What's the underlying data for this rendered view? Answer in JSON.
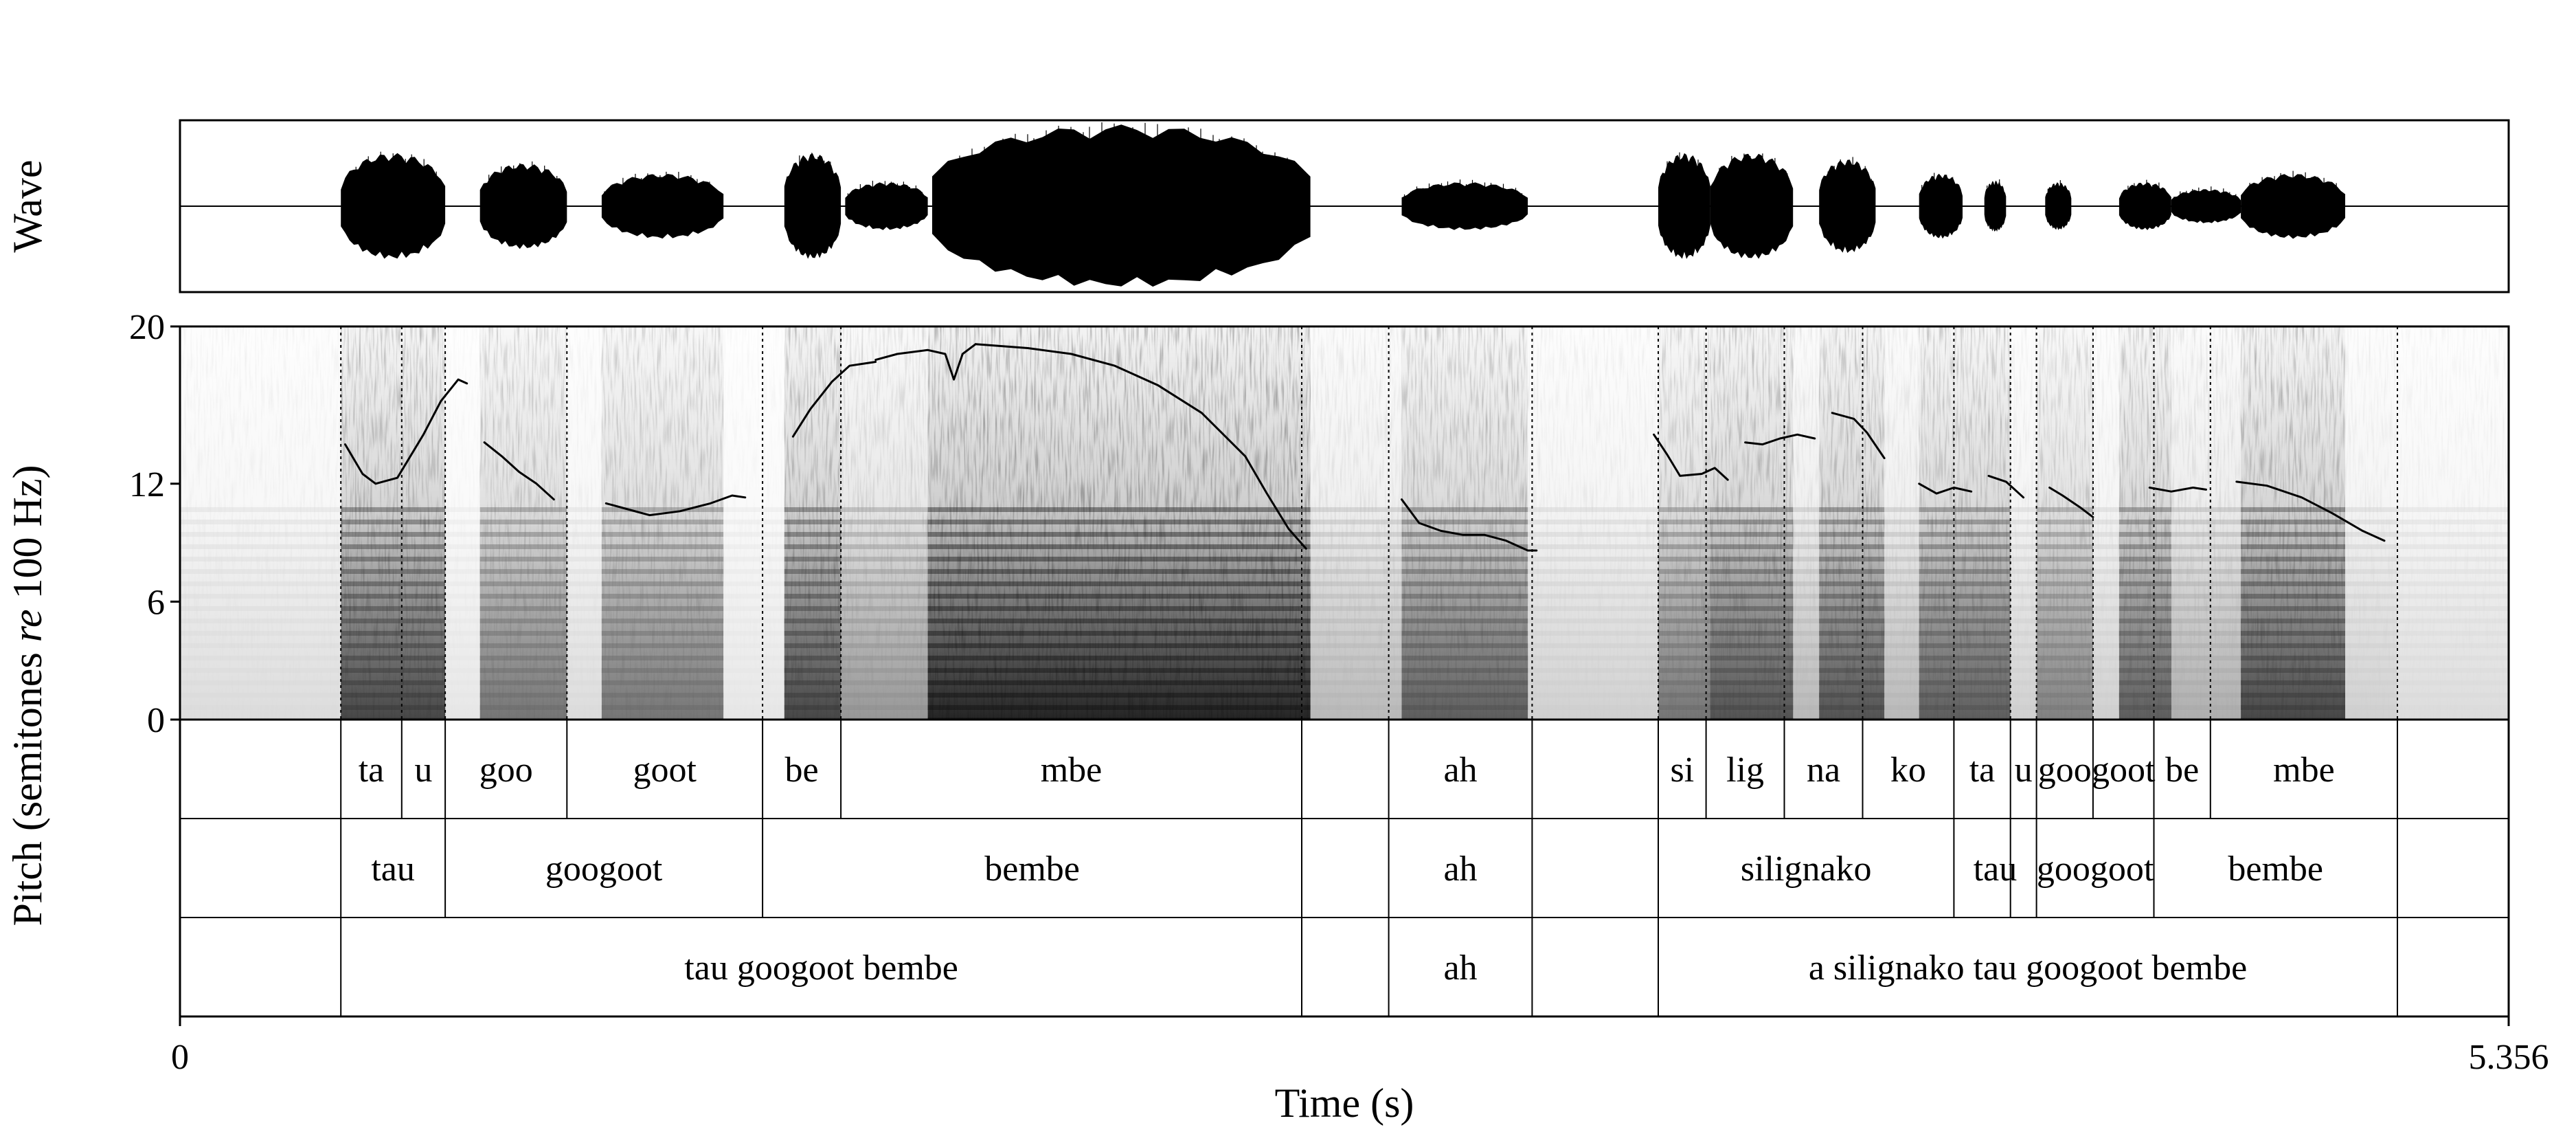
{
  "chart_data": {
    "type": "line",
    "panels": {
      "wave": {
        "ylabel": "Wave"
      },
      "pitch": {
        "ylabel_parts": [
          "Pitch (semitones ",
          "re",
          " 100 Hz)"
        ],
        "ylim": [
          0,
          20
        ],
        "yticks": [
          0,
          6,
          12,
          20
        ]
      }
    },
    "xlabel": "Time (s)",
    "xlim": [
      0,
      5.356
    ],
    "xticks": [
      "0",
      "5.356"
    ],
    "pitch_contours": [
      {
        "name": "ta-u",
        "points": [
          [
            0.38,
            14.0
          ],
          [
            0.42,
            12.5
          ],
          [
            0.45,
            12.0
          ],
          [
            0.5,
            12.3
          ],
          [
            0.56,
            14.5
          ],
          [
            0.6,
            16.2
          ],
          [
            0.64,
            17.3
          ],
          [
            0.66,
            17.1
          ]
        ]
      },
      {
        "name": "goo",
        "points": [
          [
            0.7,
            14.1
          ],
          [
            0.74,
            13.4
          ],
          [
            0.78,
            12.6
          ],
          [
            0.82,
            12.0
          ],
          [
            0.86,
            11.2
          ]
        ]
      },
      {
        "name": "goot",
        "points": [
          [
            0.98,
            11.0
          ],
          [
            1.03,
            10.7
          ],
          [
            1.08,
            10.4
          ],
          [
            1.15,
            10.6
          ],
          [
            1.22,
            11.0
          ],
          [
            1.27,
            11.4
          ],
          [
            1.3,
            11.3
          ]
        ]
      },
      {
        "name": "be",
        "points": [
          [
            1.41,
            14.4
          ],
          [
            1.45,
            15.8
          ],
          [
            1.5,
            17.2
          ],
          [
            1.54,
            18.0
          ],
          [
            1.6,
            18.2
          ]
        ]
      },
      {
        "name": "mbe-a",
        "points": [
          [
            1.6,
            18.3
          ],
          [
            1.65,
            18.6
          ],
          [
            1.72,
            18.8
          ],
          [
            1.76,
            18.6
          ],
          [
            1.78,
            17.3
          ],
          [
            1.8,
            18.6
          ],
          [
            1.83,
            19.1
          ]
        ]
      },
      {
        "name": "mbe-b",
        "points": [
          [
            1.83,
            19.1
          ],
          [
            1.95,
            18.9
          ],
          [
            2.05,
            18.6
          ],
          [
            2.15,
            18.0
          ],
          [
            2.25,
            17.0
          ],
          [
            2.35,
            15.6
          ],
          [
            2.45,
            13.4
          ],
          [
            2.5,
            11.5
          ],
          [
            2.55,
            9.7
          ],
          [
            2.59,
            8.7
          ]
        ]
      },
      {
        "name": "ah",
        "points": [
          [
            2.81,
            11.2
          ],
          [
            2.85,
            10.0
          ],
          [
            2.9,
            9.6
          ],
          [
            2.95,
            9.4
          ],
          [
            3.0,
            9.4
          ],
          [
            3.05,
            9.1
          ],
          [
            3.1,
            8.6
          ],
          [
            3.12,
            8.6
          ]
        ]
      },
      {
        "name": "si-lig",
        "points": [
          [
            3.39,
            14.5
          ],
          [
            3.42,
            13.5
          ],
          [
            3.45,
            12.4
          ],
          [
            3.5,
            12.5
          ],
          [
            3.53,
            12.8
          ],
          [
            3.56,
            12.2
          ]
        ]
      },
      {
        "name": "na",
        "points": [
          [
            3.6,
            14.1
          ],
          [
            3.64,
            14.0
          ],
          [
            3.68,
            14.3
          ],
          [
            3.72,
            14.5
          ],
          [
            3.76,
            14.3
          ]
        ]
      },
      {
        "name": "ko",
        "points": [
          [
            3.8,
            15.6
          ],
          [
            3.85,
            15.3
          ],
          [
            3.88,
            14.6
          ],
          [
            3.92,
            13.3
          ]
        ]
      },
      {
        "name": "ta",
        "points": [
          [
            4.0,
            12.0
          ],
          [
            4.04,
            11.5
          ],
          [
            4.08,
            11.8
          ],
          [
            4.12,
            11.6
          ]
        ]
      },
      {
        "name": "goo",
        "points": [
          [
            4.16,
            12.4
          ],
          [
            4.2,
            12.1
          ],
          [
            4.24,
            11.3
          ]
        ]
      },
      {
        "name": "goot",
        "points": [
          [
            4.3,
            11.8
          ],
          [
            4.33,
            11.4
          ],
          [
            4.37,
            10.8
          ],
          [
            4.4,
            10.3
          ]
        ]
      },
      {
        "name": "be",
        "points": [
          [
            4.53,
            11.8
          ],
          [
            4.58,
            11.6
          ],
          [
            4.63,
            11.8
          ],
          [
            4.66,
            11.7
          ]
        ]
      },
      {
        "name": "mbe",
        "points": [
          [
            4.73,
            12.1
          ],
          [
            4.8,
            11.9
          ],
          [
            4.88,
            11.3
          ],
          [
            4.95,
            10.5
          ],
          [
            5.02,
            9.6
          ],
          [
            5.07,
            9.1
          ]
        ]
      }
    ],
    "tiers": [
      {
        "name": "syllables",
        "boundaries": [
          0.37,
          0.51,
          0.61,
          0.89,
          1.34,
          1.52,
          2.58,
          2.78,
          3.11,
          3.4,
          3.51,
          3.69,
          3.87,
          4.08,
          4.21,
          4.27,
          4.4,
          4.54,
          4.67,
          5.1
        ],
        "intervals": [
          {
            "text": "ta",
            "start": 0.37,
            "end": 0.51
          },
          {
            "text": "u",
            "start": 0.51,
            "end": 0.61
          },
          {
            "text": "goo",
            "start": 0.61,
            "end": 0.89
          },
          {
            "text": "goot",
            "start": 0.89,
            "end": 1.34
          },
          {
            "text": "be",
            "start": 1.34,
            "end": 1.52
          },
          {
            "text": "mbe",
            "start": 1.52,
            "end": 2.58
          },
          {
            "text": "ah",
            "start": 2.78,
            "end": 3.11
          },
          {
            "text": "si",
            "start": 3.4,
            "end": 3.51
          },
          {
            "text": "lig",
            "start": 3.51,
            "end": 3.69
          },
          {
            "text": "na",
            "start": 3.69,
            "end": 3.87
          },
          {
            "text": "ko",
            "start": 3.87,
            "end": 4.08
          },
          {
            "text": "ta",
            "start": 4.08,
            "end": 4.21
          },
          {
            "text": "u",
            "start": 4.21,
            "end": 4.27
          },
          {
            "text": "goo",
            "start": 4.27,
            "end": 4.4
          },
          {
            "text": "goot",
            "start": 4.4,
            "end": 4.54
          },
          {
            "text": "be",
            "start": 4.54,
            "end": 4.67
          },
          {
            "text": "mbe",
            "start": 4.67,
            "end": 5.1
          }
        ]
      },
      {
        "name": "words",
        "boundaries": [
          0.37,
          0.61,
          1.34,
          2.58,
          2.78,
          3.11,
          3.4,
          4.08,
          4.21,
          4.27,
          4.54,
          5.1
        ],
        "intervals": [
          {
            "text": "tau",
            "start": 0.37,
            "end": 0.61
          },
          {
            "text": "googoot",
            "start": 0.61,
            "end": 1.34
          },
          {
            "text": "bembe",
            "start": 1.34,
            "end": 2.58
          },
          {
            "text": "ah",
            "start": 2.78,
            "end": 3.11
          },
          {
            "text": "silignako",
            "start": 3.4,
            "end": 4.08
          },
          {
            "text": "tau",
            "start": 4.08,
            "end": 4.27
          },
          {
            "text": "googoot",
            "start": 4.27,
            "end": 4.54
          },
          {
            "text": "bembe",
            "start": 4.54,
            "end": 5.1
          }
        ]
      },
      {
        "name": "phrases",
        "boundaries": [
          0.37,
          2.58,
          2.78,
          3.11,
          3.4,
          5.1
        ],
        "intervals": [
          {
            "text": "tau googoot bembe",
            "start": 0.37,
            "end": 2.58
          },
          {
            "text": "ah",
            "start": 2.78,
            "end": 3.11
          },
          {
            "text": "a silignako tau googoot bembe",
            "start": 3.4,
            "end": 5.1
          }
        ]
      }
    ],
    "wave_envelope": [
      {
        "start": 0.37,
        "end": 0.61,
        "amp": 0.62
      },
      {
        "start": 0.69,
        "end": 0.89,
        "amp": 0.5
      },
      {
        "start": 0.97,
        "end": 1.25,
        "amp": 0.38
      },
      {
        "start": 1.39,
        "end": 1.52,
        "amp": 0.62
      },
      {
        "start": 1.53,
        "end": 1.72,
        "amp": 0.28
      },
      {
        "start": 1.73,
        "end": 2.6,
        "amp": 0.95
      },
      {
        "start": 2.81,
        "end": 3.1,
        "amp": 0.28
      },
      {
        "start": 3.4,
        "end": 3.52,
        "amp": 0.62
      },
      {
        "start": 3.52,
        "end": 3.71,
        "amp": 0.62
      },
      {
        "start": 3.77,
        "end": 3.9,
        "amp": 0.55
      },
      {
        "start": 4.0,
        "end": 4.1,
        "amp": 0.38
      },
      {
        "start": 4.15,
        "end": 4.2,
        "amp": 0.3
      },
      {
        "start": 4.29,
        "end": 4.35,
        "amp": 0.28
      },
      {
        "start": 4.46,
        "end": 4.58,
        "amp": 0.28
      },
      {
        "start": 4.58,
        "end": 4.74,
        "amp": 0.2
      },
      {
        "start": 4.74,
        "end": 4.98,
        "amp": 0.38
      }
    ],
    "spectrogram_regions": [
      {
        "start": 0.0,
        "end": 0.37,
        "intensity": 0.15
      },
      {
        "start": 0.37,
        "end": 0.61,
        "intensity": 0.8
      },
      {
        "start": 0.61,
        "end": 0.69,
        "intensity": 0.1
      },
      {
        "start": 0.69,
        "end": 0.89,
        "intensity": 0.6
      },
      {
        "start": 0.89,
        "end": 0.97,
        "intensity": 0.15
      },
      {
        "start": 0.97,
        "end": 1.25,
        "intensity": 0.6
      },
      {
        "start": 1.25,
        "end": 1.39,
        "intensity": 0.1
      },
      {
        "start": 1.39,
        "end": 1.52,
        "intensity": 0.8
      },
      {
        "start": 1.52,
        "end": 1.72,
        "intensity": 0.45
      },
      {
        "start": 1.72,
        "end": 2.6,
        "intensity": 0.95
      },
      {
        "start": 2.6,
        "end": 2.81,
        "intensity": 0.3
      },
      {
        "start": 2.81,
        "end": 3.1,
        "intensity": 0.7
      },
      {
        "start": 3.1,
        "end": 3.4,
        "intensity": 0.2
      },
      {
        "start": 3.4,
        "end": 3.52,
        "intensity": 0.6
      },
      {
        "start": 3.52,
        "end": 3.71,
        "intensity": 0.75
      },
      {
        "start": 3.71,
        "end": 3.77,
        "intensity": 0.3
      },
      {
        "start": 3.77,
        "end": 3.92,
        "intensity": 0.75
      },
      {
        "start": 3.92,
        "end": 4.0,
        "intensity": 0.3
      },
      {
        "start": 4.0,
        "end": 4.21,
        "intensity": 0.7
      },
      {
        "start": 4.21,
        "end": 4.27,
        "intensity": 0.2
      },
      {
        "start": 4.27,
        "end": 4.4,
        "intensity": 0.55
      },
      {
        "start": 4.4,
        "end": 4.46,
        "intensity": 0.2
      },
      {
        "start": 4.46,
        "end": 4.58,
        "intensity": 0.7
      },
      {
        "start": 4.58,
        "end": 4.74,
        "intensity": 0.35
      },
      {
        "start": 4.74,
        "end": 4.98,
        "intensity": 0.8
      },
      {
        "start": 4.98,
        "end": 5.1,
        "intensity": 0.2
      },
      {
        "start": 5.1,
        "end": 5.356,
        "intensity": 0.15
      }
    ]
  }
}
